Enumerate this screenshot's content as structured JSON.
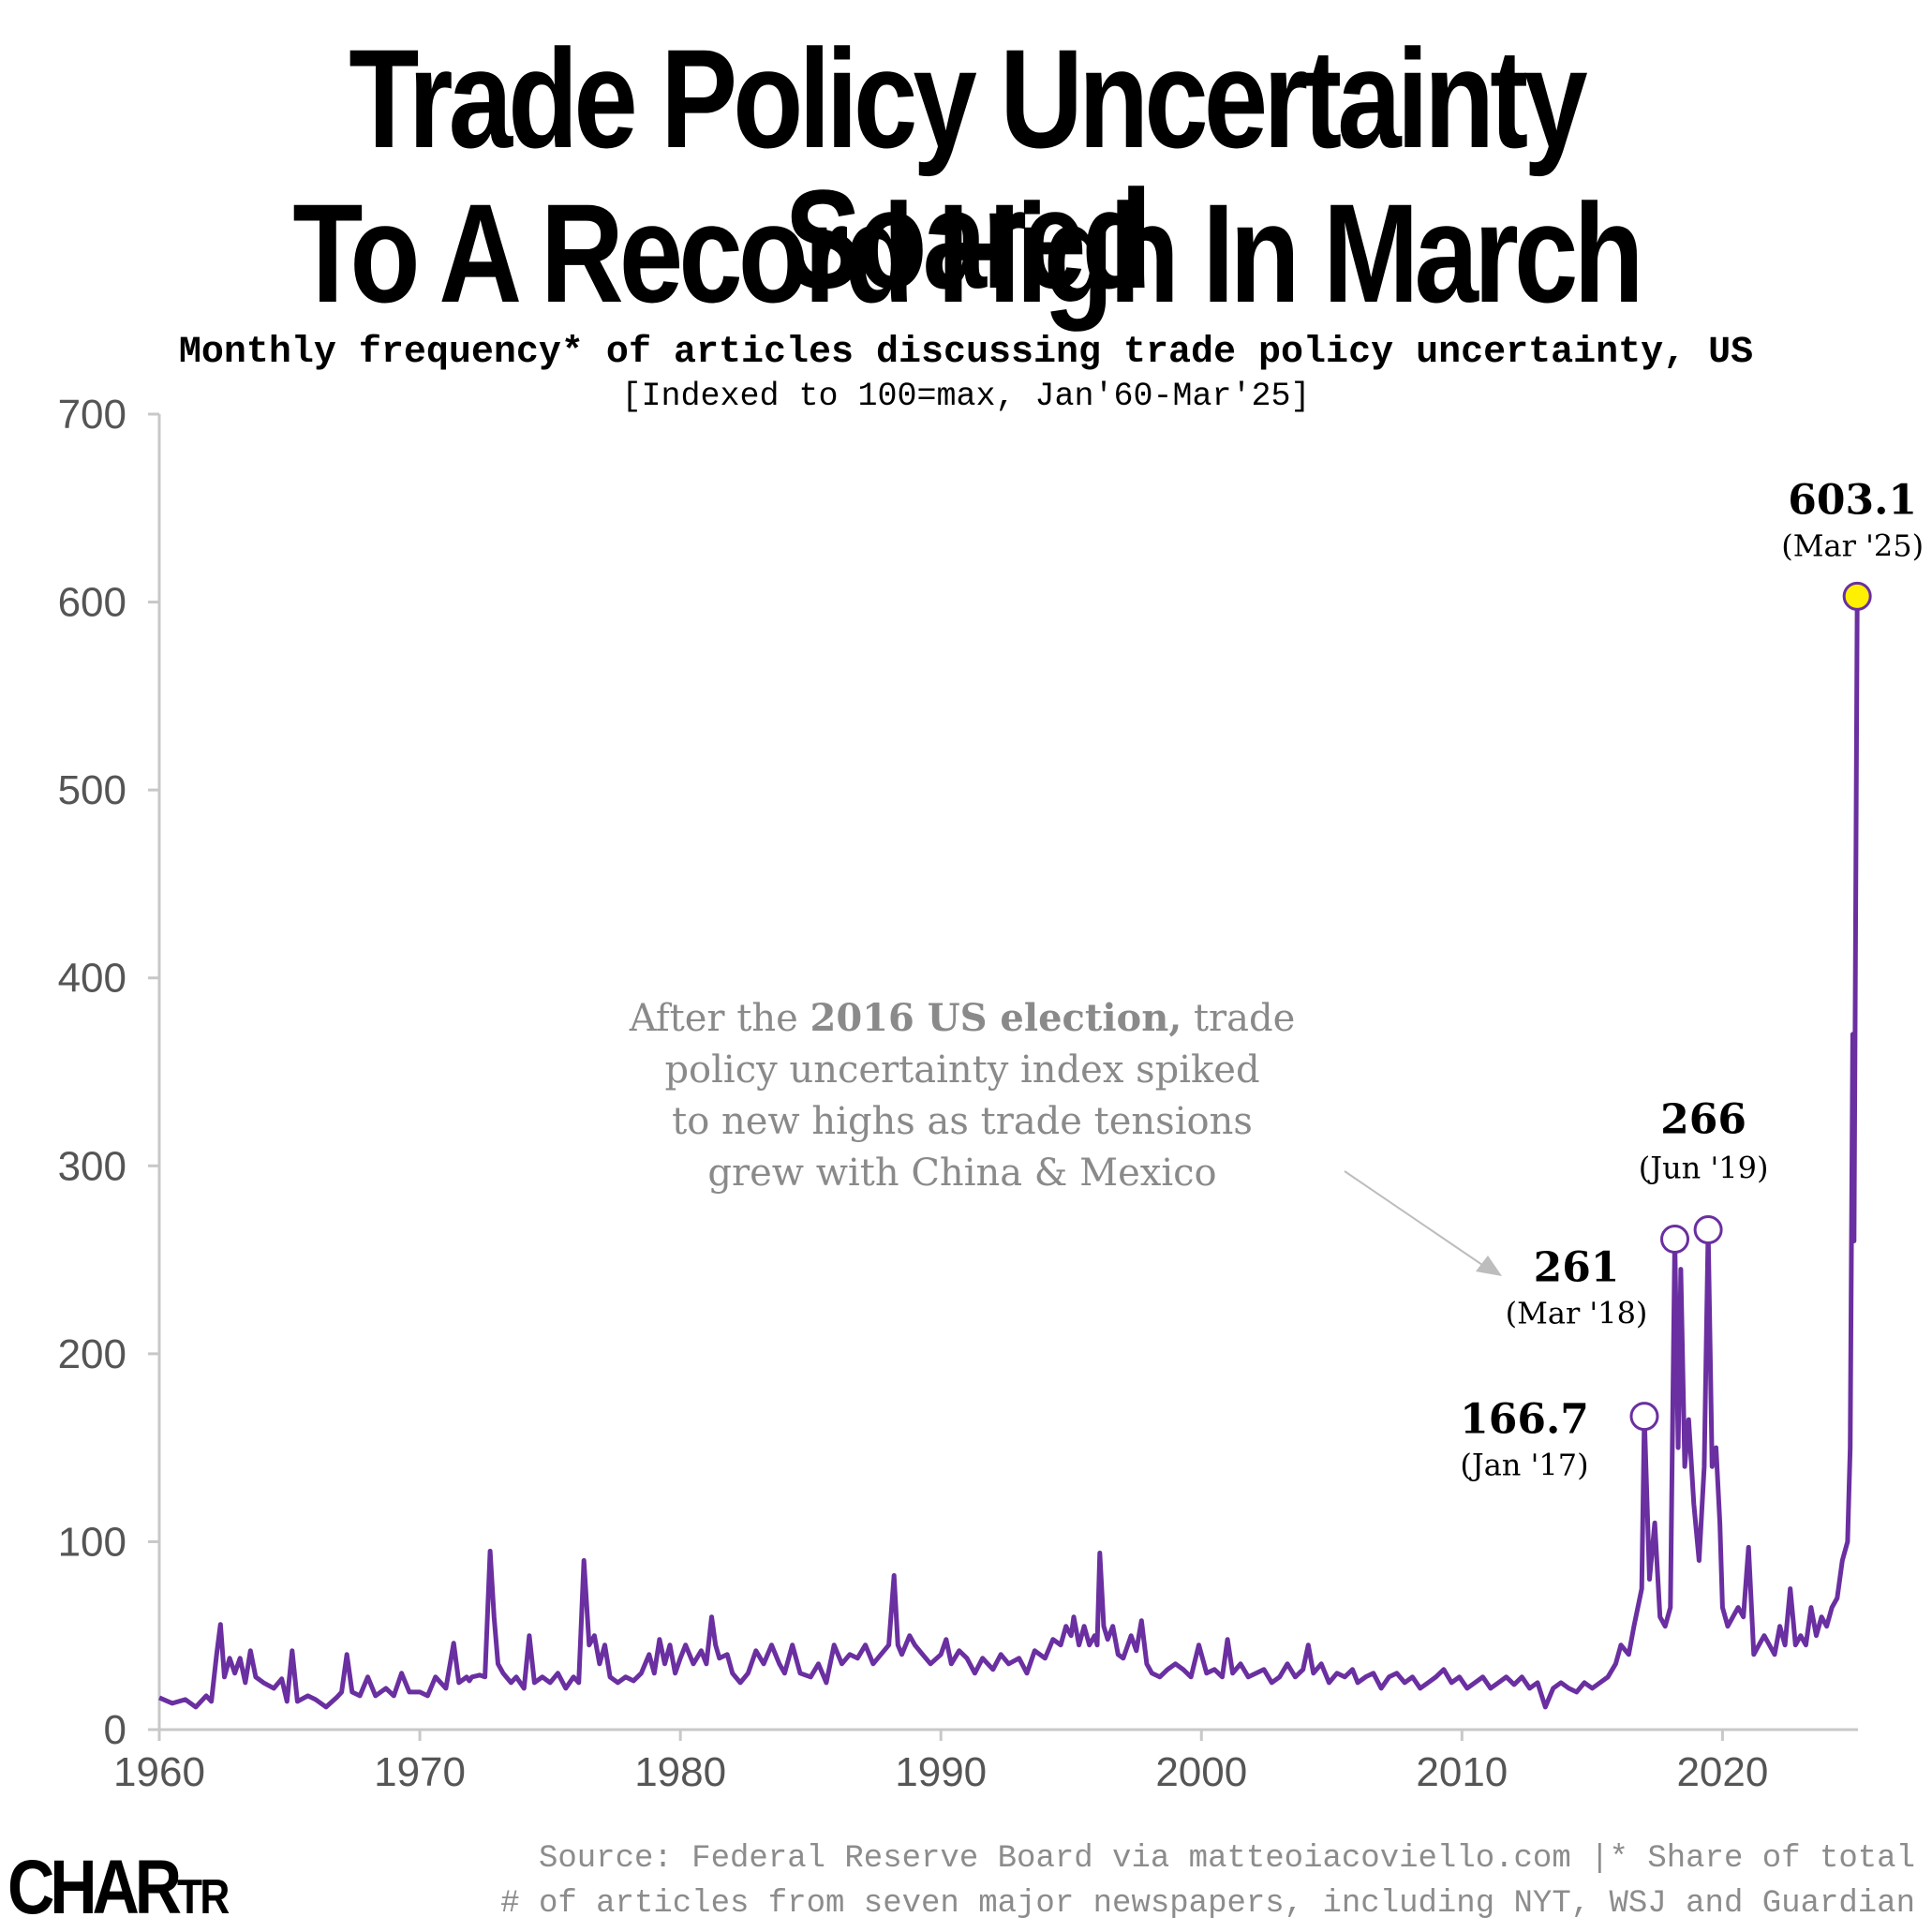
{
  "title_line1": "Trade Policy Uncertainty Soared",
  "title_line2": "To A  Record High In March",
  "subtitle": "Monthly frequency* of articles discussing trade policy uncertainty, US",
  "subtitle2": "[Indexed to 100=max, Jan'60-Mar'25]",
  "source_line1": "Source: Federal Reserve Board via matteoiacoviello.com |* Share of total",
  "source_line2": "# of articles from seven major newspapers, including NYT, WSJ and Guardian",
  "logo_main": "CHAR",
  "logo_tail": "TR",
  "colors": {
    "line": "#6a2fa0",
    "highlight": "#ffef00",
    "axis": "#c8c8c8",
    "tick_text": "#555555",
    "annotation": "#8a8a8a"
  },
  "chart_data": {
    "type": "line",
    "title": "Trade Policy Uncertainty Soared To A  Record High In March",
    "xlabel": "",
    "ylabel": "",
    "xlim": [
      1960,
      2025.2
    ],
    "ylim": [
      0,
      700
    ],
    "yticks": [
      0,
      100,
      200,
      300,
      400,
      500,
      600,
      700
    ],
    "xticks": [
      1960,
      1970,
      1980,
      1990,
      2000,
      2010,
      2020
    ],
    "series": [
      {
        "name": "Trade policy uncertainty index",
        "points": [
          [
            1960.0,
            17
          ],
          [
            1960.5,
            14
          ],
          [
            1961.0,
            16
          ],
          [
            1961.4,
            12
          ],
          [
            1961.8,
            18
          ],
          [
            1962.0,
            15
          ],
          [
            1962.2,
            40
          ],
          [
            1962.35,
            56
          ],
          [
            1962.5,
            28
          ],
          [
            1962.7,
            38
          ],
          [
            1962.9,
            30
          ],
          [
            1963.1,
            38
          ],
          [
            1963.3,
            25
          ],
          [
            1963.5,
            42
          ],
          [
            1963.7,
            28
          ],
          [
            1964.0,
            25
          ],
          [
            1964.4,
            22
          ],
          [
            1964.7,
            27
          ],
          [
            1964.9,
            15
          ],
          [
            1965.1,
            42
          ],
          [
            1965.3,
            15
          ],
          [
            1965.7,
            18
          ],
          [
            1966.0,
            16
          ],
          [
            1966.4,
            12
          ],
          [
            1966.8,
            17
          ],
          [
            1967.0,
            20
          ],
          [
            1967.2,
            40
          ],
          [
            1967.4,
            20
          ],
          [
            1967.7,
            18
          ],
          [
            1968.0,
            28
          ],
          [
            1968.3,
            18
          ],
          [
            1968.7,
            22
          ],
          [
            1969.0,
            18
          ],
          [
            1969.3,
            30
          ],
          [
            1969.6,
            20
          ],
          [
            1970.0,
            20
          ],
          [
            1970.3,
            18
          ],
          [
            1970.6,
            28
          ],
          [
            1971.0,
            22
          ],
          [
            1971.3,
            46
          ],
          [
            1971.5,
            25
          ],
          [
            1971.8,
            28
          ],
          [
            1971.9,
            26
          ],
          [
            1972.0,
            28
          ],
          [
            1972.3,
            29
          ],
          [
            1972.5,
            28
          ],
          [
            1972.7,
            95
          ],
          [
            1972.85,
            60
          ],
          [
            1973.0,
            35
          ],
          [
            1973.2,
            30
          ],
          [
            1973.5,
            25
          ],
          [
            1973.7,
            28
          ],
          [
            1974.0,
            22
          ],
          [
            1974.2,
            50
          ],
          [
            1974.4,
            25
          ],
          [
            1974.7,
            28
          ],
          [
            1975.0,
            25
          ],
          [
            1975.3,
            30
          ],
          [
            1975.6,
            22
          ],
          [
            1975.9,
            28
          ],
          [
            1976.1,
            25
          ],
          [
            1976.3,
            90
          ],
          [
            1976.5,
            45
          ],
          [
            1976.7,
            50
          ],
          [
            1976.9,
            35
          ],
          [
            1977.1,
            45
          ],
          [
            1977.3,
            28
          ],
          [
            1977.6,
            25
          ],
          [
            1977.9,
            28
          ],
          [
            1978.2,
            26
          ],
          [
            1978.5,
            30
          ],
          [
            1978.8,
            40
          ],
          [
            1979.0,
            30
          ],
          [
            1979.2,
            48
          ],
          [
            1979.4,
            35
          ],
          [
            1979.6,
            45
          ],
          [
            1979.8,
            30
          ],
          [
            1980.0,
            38
          ],
          [
            1980.2,
            45
          ],
          [
            1980.5,
            35
          ],
          [
            1980.8,
            42
          ],
          [
            1981.0,
            35
          ],
          [
            1981.2,
            60
          ],
          [
            1981.35,
            45
          ],
          [
            1981.5,
            38
          ],
          [
            1981.8,
            40
          ],
          [
            1982.0,
            30
          ],
          [
            1982.3,
            25
          ],
          [
            1982.6,
            30
          ],
          [
            1982.9,
            42
          ],
          [
            1983.2,
            35
          ],
          [
            1983.5,
            45
          ],
          [
            1983.8,
            35
          ],
          [
            1984.0,
            30
          ],
          [
            1984.3,
            45
          ],
          [
            1984.6,
            30
          ],
          [
            1985.0,
            28
          ],
          [
            1985.3,
            35
          ],
          [
            1985.6,
            25
          ],
          [
            1985.9,
            45
          ],
          [
            1986.2,
            35
          ],
          [
            1986.5,
            40
          ],
          [
            1986.8,
            38
          ],
          [
            1987.1,
            45
          ],
          [
            1987.4,
            35
          ],
          [
            1987.7,
            40
          ],
          [
            1988.0,
            45
          ],
          [
            1988.2,
            82
          ],
          [
            1988.35,
            45
          ],
          [
            1988.5,
            40
          ],
          [
            1988.8,
            50
          ],
          [
            1989.0,
            45
          ],
          [
            1989.3,
            40
          ],
          [
            1989.6,
            35
          ],
          [
            1990.0,
            40
          ],
          [
            1990.2,
            48
          ],
          [
            1990.4,
            35
          ],
          [
            1990.7,
            42
          ],
          [
            1991.0,
            38
          ],
          [
            1991.3,
            30
          ],
          [
            1991.6,
            38
          ],
          [
            1992.0,
            32
          ],
          [
            1992.3,
            40
          ],
          [
            1992.6,
            35
          ],
          [
            1993.0,
            38
          ],
          [
            1993.3,
            30
          ],
          [
            1993.6,
            42
          ],
          [
            1994.0,
            38
          ],
          [
            1994.3,
            48
          ],
          [
            1994.6,
            45
          ],
          [
            1994.8,
            55
          ],
          [
            1995.0,
            50
          ],
          [
            1995.1,
            60
          ],
          [
            1995.3,
            45
          ],
          [
            1995.5,
            55
          ],
          [
            1995.7,
            45
          ],
          [
            1995.9,
            50
          ],
          [
            1996.0,
            45
          ],
          [
            1996.1,
            94
          ],
          [
            1996.25,
            55
          ],
          [
            1996.4,
            48
          ],
          [
            1996.6,
            55
          ],
          [
            1996.8,
            40
          ],
          [
            1997.0,
            38
          ],
          [
            1997.3,
            50
          ],
          [
            1997.5,
            42
          ],
          [
            1997.7,
            58
          ],
          [
            1997.9,
            35
          ],
          [
            1998.1,
            30
          ],
          [
            1998.4,
            28
          ],
          [
            1998.7,
            32
          ],
          [
            1999.0,
            35
          ],
          [
            1999.3,
            32
          ],
          [
            1999.6,
            28
          ],
          [
            1999.9,
            45
          ],
          [
            2000.2,
            30
          ],
          [
            2000.5,
            32
          ],
          [
            2000.8,
            28
          ],
          [
            2001.0,
            48
          ],
          [
            2001.2,
            30
          ],
          [
            2001.5,
            35
          ],
          [
            2001.8,
            28
          ],
          [
            2002.1,
            30
          ],
          [
            2002.4,
            32
          ],
          [
            2002.7,
            25
          ],
          [
            2003.0,
            28
          ],
          [
            2003.3,
            35
          ],
          [
            2003.6,
            28
          ],
          [
            2003.9,
            32
          ],
          [
            2004.1,
            45
          ],
          [
            2004.3,
            30
          ],
          [
            2004.6,
            35
          ],
          [
            2004.9,
            25
          ],
          [
            2005.2,
            30
          ],
          [
            2005.5,
            28
          ],
          [
            2005.8,
            32
          ],
          [
            2006.0,
            25
          ],
          [
            2006.3,
            28
          ],
          [
            2006.6,
            30
          ],
          [
            2006.9,
            22
          ],
          [
            2007.2,
            28
          ],
          [
            2007.5,
            30
          ],
          [
            2007.8,
            25
          ],
          [
            2008.1,
            28
          ],
          [
            2008.4,
            22
          ],
          [
            2008.7,
            25
          ],
          [
            2009.0,
            28
          ],
          [
            2009.3,
            32
          ],
          [
            2009.6,
            25
          ],
          [
            2009.9,
            28
          ],
          [
            2010.2,
            22
          ],
          [
            2010.5,
            25
          ],
          [
            2010.8,
            28
          ],
          [
            2011.1,
            22
          ],
          [
            2011.4,
            25
          ],
          [
            2011.7,
            28
          ],
          [
            2012.0,
            24
          ],
          [
            2012.3,
            28
          ],
          [
            2012.6,
            22
          ],
          [
            2012.9,
            25
          ],
          [
            2013.2,
            12
          ],
          [
            2013.5,
            22
          ],
          [
            2013.8,
            25
          ],
          [
            2014.1,
            22
          ],
          [
            2014.4,
            20
          ],
          [
            2014.7,
            25
          ],
          [
            2015.0,
            22
          ],
          [
            2015.3,
            25
          ],
          [
            2015.6,
            28
          ],
          [
            2015.9,
            35
          ],
          [
            2016.1,
            45
          ],
          [
            2016.4,
            40
          ],
          [
            2016.6,
            55
          ],
          [
            2016.9,
            75
          ],
          [
            2017.0,
            166.7
          ],
          [
            2017.2,
            80
          ],
          [
            2017.4,
            110
          ],
          [
            2017.6,
            60
          ],
          [
            2017.8,
            55
          ],
          [
            2018.0,
            65
          ],
          [
            2018.17,
            261
          ],
          [
            2018.3,
            150
          ],
          [
            2018.4,
            245
          ],
          [
            2018.55,
            140
          ],
          [
            2018.7,
            165
          ],
          [
            2018.9,
            120
          ],
          [
            2019.1,
            90
          ],
          [
            2019.3,
            140
          ],
          [
            2019.45,
            266
          ],
          [
            2019.6,
            140
          ],
          [
            2019.75,
            150
          ],
          [
            2019.9,
            110
          ],
          [
            2020.0,
            65
          ],
          [
            2020.2,
            55
          ],
          [
            2020.4,
            60
          ],
          [
            2020.6,
            65
          ],
          [
            2020.8,
            60
          ],
          [
            2021.0,
            97
          ],
          [
            2021.2,
            40
          ],
          [
            2021.4,
            45
          ],
          [
            2021.6,
            50
          ],
          [
            2021.8,
            45
          ],
          [
            2022.0,
            40
          ],
          [
            2022.2,
            55
          ],
          [
            2022.4,
            45
          ],
          [
            2022.6,
            75
          ],
          [
            2022.8,
            45
          ],
          [
            2023.0,
            50
          ],
          [
            2023.2,
            45
          ],
          [
            2023.4,
            65
          ],
          [
            2023.6,
            50
          ],
          [
            2023.8,
            60
          ],
          [
            2024.0,
            55
          ],
          [
            2024.2,
            65
          ],
          [
            2024.4,
            70
          ],
          [
            2024.6,
            90
          ],
          [
            2024.8,
            100
          ],
          [
            2024.9,
            150
          ],
          [
            2025.0,
            370
          ],
          [
            2025.05,
            260
          ],
          [
            2025.17,
            603.1
          ]
        ]
      }
    ],
    "highlights": [
      {
        "x": 2017.0,
        "y": 166.7,
        "value": "166.7",
        "date": "(Jan '17)",
        "fill": "#ffffff"
      },
      {
        "x": 2018.17,
        "y": 261,
        "value": "261",
        "date": "(Mar '18)",
        "fill": "#ffffff"
      },
      {
        "x": 2019.45,
        "y": 266,
        "value": "266",
        "date": "(Jun '19)",
        "fill": "#ffffff"
      },
      {
        "x": 2025.17,
        "y": 603.1,
        "value": "603.1",
        "date": "(Mar '25)",
        "fill": "#ffef00"
      }
    ],
    "annotation": {
      "line1_pre": "After the ",
      "line1_bold": "2016 US election,",
      "line1_post": " trade",
      "line2": "policy uncertainty index spiked",
      "line3": "to new highs as trade tensions",
      "line4": "grew with China & Mexico"
    }
  }
}
